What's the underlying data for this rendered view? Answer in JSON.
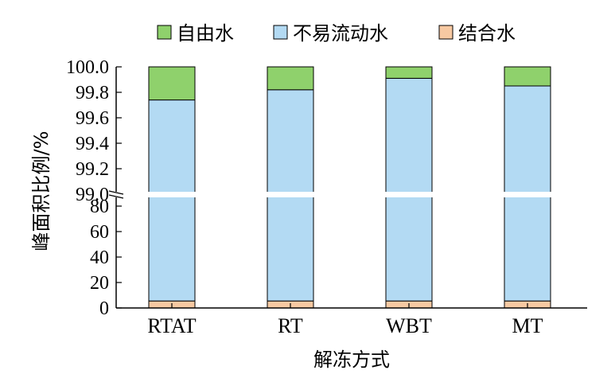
{
  "chart_data": {
    "type": "bar",
    "stacked": true,
    "title": "",
    "xlabel": "解冻方式",
    "ylabel": "峰面积比例/%",
    "categories": [
      "RTAT",
      "RT",
      "WBT",
      "MT"
    ],
    "series": [
      {
        "name": "结合水",
        "color": "#f7c9a2",
        "values": [
          5.5,
          5.5,
          5.5,
          5.5
        ]
      },
      {
        "name": "不易流动水",
        "color": "#b3daf3",
        "values": [
          94.24,
          94.32,
          94.41,
          94.35
        ]
      },
      {
        "name": "自由水",
        "color": "#8fd16c",
        "values": [
          0.26,
          0.18,
          0.09,
          0.15
        ]
      }
    ],
    "legend_order": [
      "自由水",
      "不易流动水",
      "结合水"
    ],
    "legend_position": "top",
    "axis_break": {
      "lower_range": [
        0,
        90
      ],
      "upper_range": [
        99.0,
        100.0
      ]
    },
    "y_ticks_lower": [
      "0",
      "20",
      "40",
      "60",
      "80"
    ],
    "y_ticks_upper": [
      "99.0",
      "99.2",
      "99.4",
      "99.6",
      "99.8",
      "100.0"
    ],
    "grid": false
  }
}
